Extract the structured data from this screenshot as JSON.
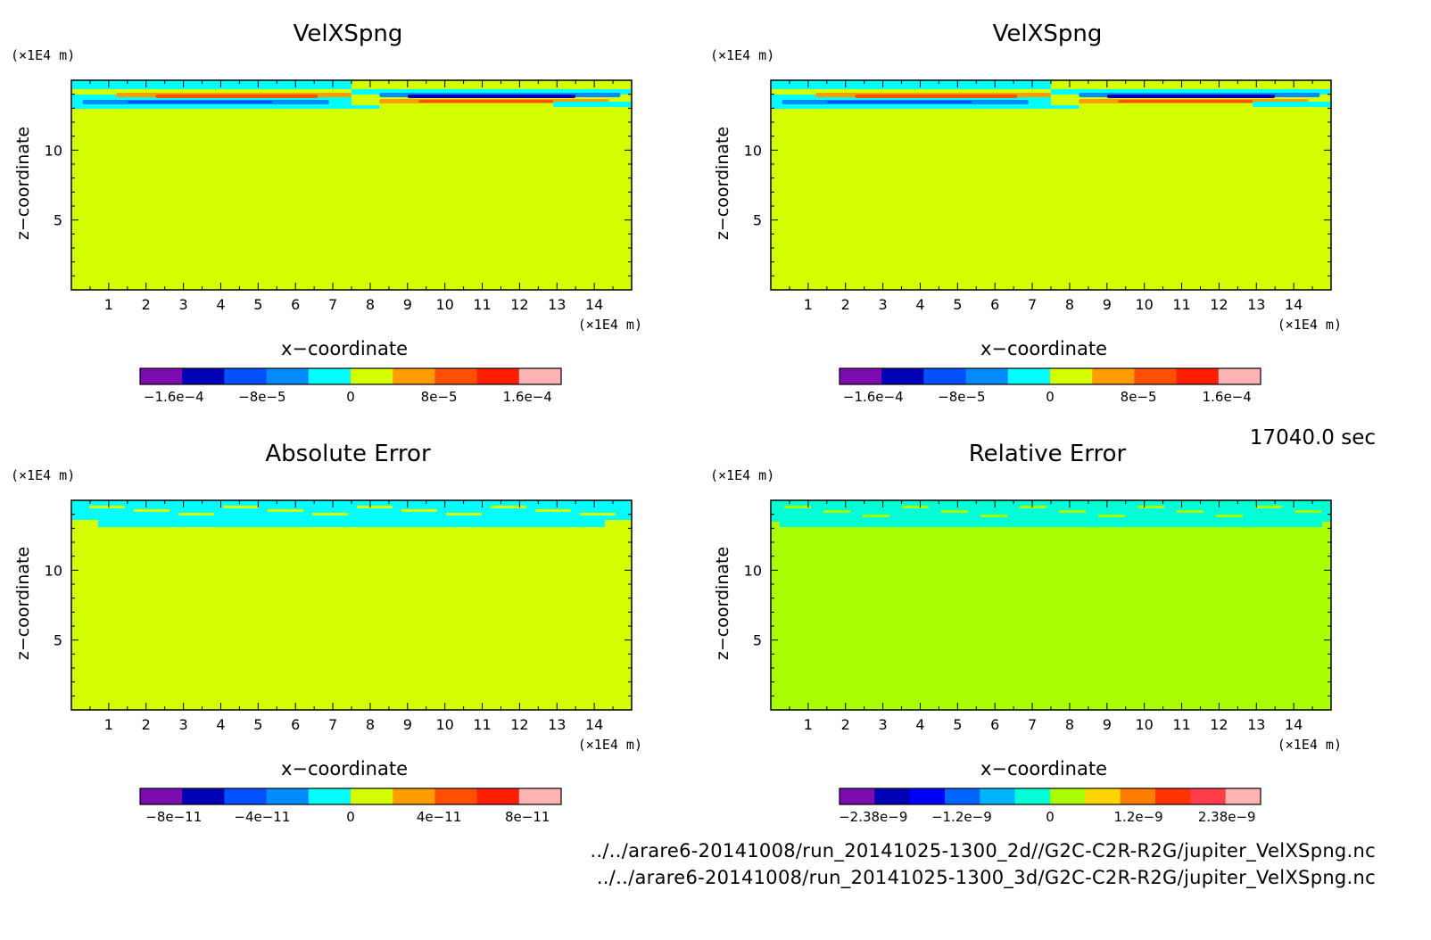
{
  "time_label": "17040.0 sec",
  "footer": {
    "line1": "../../arare6-20141008/run_20141025-1300_2d//G2C-C2R-R2G/jupiter_VelXSpng.nc",
    "line2": "../../arare6-20141008/run_20141025-1300_3d/G2C-C2R-R2G/jupiter_VelXSpng.nc"
  },
  "colors": {
    "velx_background": "#d4ff00",
    "abs_background": "#d4ff00",
    "rel_background": "#aaff00"
  },
  "chart_data": [
    {
      "type": "heatmap",
      "title": "VelXSpng",
      "xlabel": "x−coordinate",
      "ylabel": "z−coordinate",
      "x_unit": "(×1E4 m)",
      "y_unit": "(×1E4 m)",
      "xlim": [
        0,
        15
      ],
      "ylim": [
        0,
        15
      ],
      "x_ticks": [
        1,
        2,
        3,
        4,
        5,
        6,
        7,
        8,
        9,
        10,
        11,
        12,
        13,
        14
      ],
      "y_ticks": [
        5,
        10
      ],
      "colorbar": {
        "colors": [
          "#7d0cb0",
          "#0000b4",
          "#0050ff",
          "#008cff",
          "#00ffff",
          "#d4ff00",
          "#ff9d00",
          "#ff5000",
          "#ff1e00",
          "#ffb4b4"
        ],
        "tick_labels": [
          "−1.6e−4",
          "−8e−5",
          "0",
          "8e−5",
          "1.6e−4"
        ]
      }
    },
    {
      "type": "heatmap",
      "title": "VelXSpng",
      "xlabel": "x−coordinate",
      "ylabel": "z−coordinate",
      "x_unit": "(×1E4 m)",
      "y_unit": "(×1E4 m)",
      "xlim": [
        0,
        15
      ],
      "ylim": [
        0,
        15
      ],
      "x_ticks": [
        1,
        2,
        3,
        4,
        5,
        6,
        7,
        8,
        9,
        10,
        11,
        12,
        13,
        14
      ],
      "y_ticks": [
        5,
        10
      ],
      "colorbar": {
        "colors": [
          "#7d0cb0",
          "#0000b4",
          "#0050ff",
          "#008cff",
          "#00ffff",
          "#d4ff00",
          "#ff9d00",
          "#ff5000",
          "#ff1e00",
          "#ffb4b4"
        ],
        "tick_labels": [
          "−1.6e−4",
          "−8e−5",
          "0",
          "8e−5",
          "1.6e−4"
        ]
      }
    },
    {
      "type": "heatmap",
      "title": "Absolute Error",
      "xlabel": "x−coordinate",
      "ylabel": "z−coordinate",
      "x_unit": "(×1E4 m)",
      "y_unit": "(×1E4 m)",
      "xlim": [
        0,
        15
      ],
      "ylim": [
        0,
        15
      ],
      "x_ticks": [
        1,
        2,
        3,
        4,
        5,
        6,
        7,
        8,
        9,
        10,
        11,
        12,
        13,
        14
      ],
      "y_ticks": [
        5,
        10
      ],
      "colorbar": {
        "colors": [
          "#7d0cb0",
          "#0000b4",
          "#0050ff",
          "#008cff",
          "#00ffff",
          "#d4ff00",
          "#ff9d00",
          "#ff5000",
          "#ff1e00",
          "#ffb4b4"
        ],
        "tick_labels": [
          "−8e−11",
          "−4e−11",
          "0",
          "4e−11",
          "8e−11"
        ]
      }
    },
    {
      "type": "heatmap",
      "title": "Relative Error",
      "xlabel": "x−coordinate",
      "ylabel": "z−coordinate",
      "x_unit": "(×1E4 m)",
      "y_unit": "(×1E4 m)",
      "xlim": [
        0,
        15
      ],
      "ylim": [
        0,
        15
      ],
      "x_ticks": [
        1,
        2,
        3,
        4,
        5,
        6,
        7,
        8,
        9,
        10,
        11,
        12,
        13,
        14
      ],
      "y_ticks": [
        5,
        10
      ],
      "colorbar": {
        "colors": [
          "#7d0cb0",
          "#0000b4",
          "#0000ff",
          "#0064ff",
          "#00b4ff",
          "#00ffd4",
          "#aaff00",
          "#ffd400",
          "#ff7d00",
          "#ff3200",
          "#ff3c4a",
          "#ffb4b4"
        ],
        "tick_labels": [
          "−2.38e−9",
          "−1.2e−9",
          "0",
          "1.2e−9",
          "2.38e−9"
        ]
      }
    }
  ]
}
